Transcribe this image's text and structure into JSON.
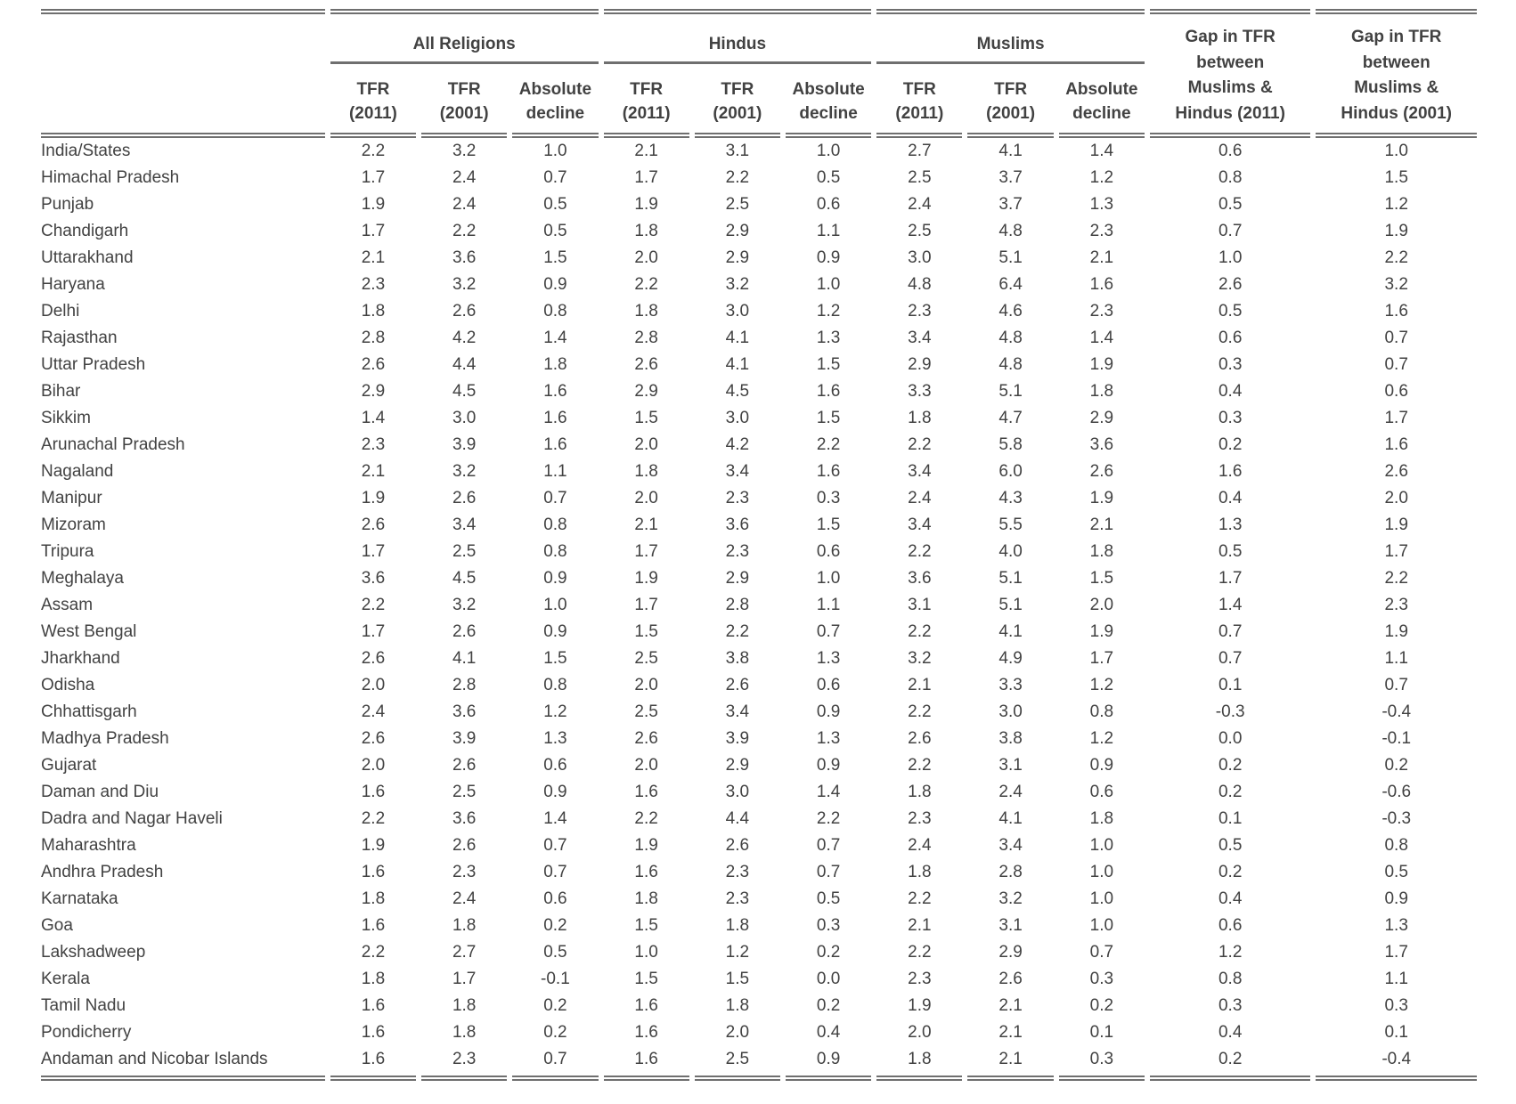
{
  "table": {
    "group_headers": [
      "All Religions",
      "Hindus",
      "Muslims"
    ],
    "sub_headers": [
      "TFR\n(2011)",
      "TFR\n(2001)",
      "Absolute\ndecline",
      "TFR\n(2011)",
      "TFR\n(2001)",
      "Absolute\ndecline",
      "TFR\n(2011)",
      "TFR\n(2001)",
      "Absolute\ndecline"
    ],
    "gap_headers": [
      "Gap in TFR\nbetween\nMuslims &\nHindus (2011)",
      "Gap in TFR\nbetween\nMuslims &\nHindus (2001)"
    ],
    "rows": [
      {
        "name": "India/States",
        "values": [
          "2.2",
          "3.2",
          "1.0",
          "2.1",
          "3.1",
          "1.0",
          "2.7",
          "4.1",
          "1.4",
          "0.6",
          "1.0"
        ]
      },
      {
        "name": "Himachal Pradesh",
        "values": [
          "1.7",
          "2.4",
          "0.7",
          "1.7",
          "2.2",
          "0.5",
          "2.5",
          "3.7",
          "1.2",
          "0.8",
          "1.5"
        ]
      },
      {
        "name": "Punjab",
        "values": [
          "1.9",
          "2.4",
          "0.5",
          "1.9",
          "2.5",
          "0.6",
          "2.4",
          "3.7",
          "1.3",
          "0.5",
          "1.2"
        ]
      },
      {
        "name": "Chandigarh",
        "values": [
          "1.7",
          "2.2",
          "0.5",
          "1.8",
          "2.9",
          "1.1",
          "2.5",
          "4.8",
          "2.3",
          "0.7",
          "1.9"
        ]
      },
      {
        "name": "Uttarakhand",
        "values": [
          "2.1",
          "3.6",
          "1.5",
          "2.0",
          "2.9",
          "0.9",
          "3.0",
          "5.1",
          "2.1",
          "1.0",
          "2.2"
        ]
      },
      {
        "name": "Haryana",
        "values": [
          "2.3",
          "3.2",
          "0.9",
          "2.2",
          "3.2",
          "1.0",
          "4.8",
          "6.4",
          "1.6",
          "2.6",
          "3.2"
        ]
      },
      {
        "name": "Delhi",
        "values": [
          "1.8",
          "2.6",
          "0.8",
          "1.8",
          "3.0",
          "1.2",
          "2.3",
          "4.6",
          "2.3",
          "0.5",
          "1.6"
        ]
      },
      {
        "name": "Rajasthan",
        "values": [
          "2.8",
          "4.2",
          "1.4",
          "2.8",
          "4.1",
          "1.3",
          "3.4",
          "4.8",
          "1.4",
          "0.6",
          "0.7"
        ]
      },
      {
        "name": "Uttar Pradesh",
        "values": [
          "2.6",
          "4.4",
          "1.8",
          "2.6",
          "4.1",
          "1.5",
          "2.9",
          "4.8",
          "1.9",
          "0.3",
          "0.7"
        ]
      },
      {
        "name": "Bihar",
        "values": [
          "2.9",
          "4.5",
          "1.6",
          "2.9",
          "4.5",
          "1.6",
          "3.3",
          "5.1",
          "1.8",
          "0.4",
          "0.6"
        ]
      },
      {
        "name": "Sikkim",
        "values": [
          "1.4",
          "3.0",
          "1.6",
          "1.5",
          "3.0",
          "1.5",
          "1.8",
          "4.7",
          "2.9",
          "0.3",
          "1.7"
        ]
      },
      {
        "name": "Arunachal Pradesh",
        "values": [
          "2.3",
          "3.9",
          "1.6",
          "2.0",
          "4.2",
          "2.2",
          "2.2",
          "5.8",
          "3.6",
          "0.2",
          "1.6"
        ]
      },
      {
        "name": "Nagaland",
        "values": [
          "2.1",
          "3.2",
          "1.1",
          "1.8",
          "3.4",
          "1.6",
          "3.4",
          "6.0",
          "2.6",
          "1.6",
          "2.6"
        ]
      },
      {
        "name": "Manipur",
        "values": [
          "1.9",
          "2.6",
          "0.7",
          "2.0",
          "2.3",
          "0.3",
          "2.4",
          "4.3",
          "1.9",
          "0.4",
          "2.0"
        ]
      },
      {
        "name": "Mizoram",
        "values": [
          "2.6",
          "3.4",
          "0.8",
          "2.1",
          "3.6",
          "1.5",
          "3.4",
          "5.5",
          "2.1",
          "1.3",
          "1.9"
        ]
      },
      {
        "name": "Tripura",
        "values": [
          "1.7",
          "2.5",
          "0.8",
          "1.7",
          "2.3",
          "0.6",
          "2.2",
          "4.0",
          "1.8",
          "0.5",
          "1.7"
        ]
      },
      {
        "name": "Meghalaya",
        "values": [
          "3.6",
          "4.5",
          "0.9",
          "1.9",
          "2.9",
          "1.0",
          "3.6",
          "5.1",
          "1.5",
          "1.7",
          "2.2"
        ]
      },
      {
        "name": "Assam",
        "values": [
          "2.2",
          "3.2",
          "1.0",
          "1.7",
          "2.8",
          "1.1",
          "3.1",
          "5.1",
          "2.0",
          "1.4",
          "2.3"
        ]
      },
      {
        "name": "West Bengal",
        "values": [
          "1.7",
          "2.6",
          "0.9",
          "1.5",
          "2.2",
          "0.7",
          "2.2",
          "4.1",
          "1.9",
          "0.7",
          "1.9"
        ]
      },
      {
        "name": "Jharkhand",
        "values": [
          "2.6",
          "4.1",
          "1.5",
          "2.5",
          "3.8",
          "1.3",
          "3.2",
          "4.9",
          "1.7",
          "0.7",
          "1.1"
        ]
      },
      {
        "name": "Odisha",
        "values": [
          "2.0",
          "2.8",
          "0.8",
          "2.0",
          "2.6",
          "0.6",
          "2.1",
          "3.3",
          "1.2",
          "0.1",
          "0.7"
        ]
      },
      {
        "name": "Chhattisgarh",
        "values": [
          "2.4",
          "3.6",
          "1.2",
          "2.5",
          "3.4",
          "0.9",
          "2.2",
          "3.0",
          "0.8",
          "-0.3",
          "-0.4"
        ]
      },
      {
        "name": "Madhya Pradesh",
        "values": [
          "2.6",
          "3.9",
          "1.3",
          "2.6",
          "3.9",
          "1.3",
          "2.6",
          "3.8",
          "1.2",
          "0.0",
          "-0.1"
        ]
      },
      {
        "name": "Gujarat",
        "values": [
          "2.0",
          "2.6",
          "0.6",
          "2.0",
          "2.9",
          "0.9",
          "2.2",
          "3.1",
          "0.9",
          "0.2",
          "0.2"
        ]
      },
      {
        "name": "Daman and Diu",
        "values": [
          "1.6",
          "2.5",
          "0.9",
          "1.6",
          "3.0",
          "1.4",
          "1.8",
          "2.4",
          "0.6",
          "0.2",
          "-0.6"
        ]
      },
      {
        "name": "Dadra and Nagar Haveli",
        "values": [
          "2.2",
          "3.6",
          "1.4",
          "2.2",
          "4.4",
          "2.2",
          "2.3",
          "4.1",
          "1.8",
          "0.1",
          "-0.3"
        ]
      },
      {
        "name": "Maharashtra",
        "values": [
          "1.9",
          "2.6",
          "0.7",
          "1.9",
          "2.6",
          "0.7",
          "2.4",
          "3.4",
          "1.0",
          "0.5",
          "0.8"
        ]
      },
      {
        "name": "Andhra Pradesh",
        "values": [
          "1.6",
          "2.3",
          "0.7",
          "1.6",
          "2.3",
          "0.7",
          "1.8",
          "2.8",
          "1.0",
          "0.2",
          "0.5"
        ]
      },
      {
        "name": "Karnataka",
        "values": [
          "1.8",
          "2.4",
          "0.6",
          "1.8",
          "2.3",
          "0.5",
          "2.2",
          "3.2",
          "1.0",
          "0.4",
          "0.9"
        ]
      },
      {
        "name": "Goa",
        "values": [
          "1.6",
          "1.8",
          "0.2",
          "1.5",
          "1.8",
          "0.3",
          "2.1",
          "3.1",
          "1.0",
          "0.6",
          "1.3"
        ]
      },
      {
        "name": "Lakshadweep",
        "values": [
          "2.2",
          "2.7",
          "0.5",
          "1.0",
          "1.2",
          "0.2",
          "2.2",
          "2.9",
          "0.7",
          "1.2",
          "1.7"
        ]
      },
      {
        "name": "Kerala",
        "values": [
          "1.8",
          "1.7",
          "-0.1",
          "1.5",
          "1.5",
          "0.0",
          "2.3",
          "2.6",
          "0.3",
          "0.8",
          "1.1"
        ]
      },
      {
        "name": "Tamil Nadu",
        "values": [
          "1.6",
          "1.8",
          "0.2",
          "1.6",
          "1.8",
          "0.2",
          "1.9",
          "2.1",
          "0.2",
          "0.3",
          "0.3"
        ]
      },
      {
        "name": "Pondicherry",
        "values": [
          "1.6",
          "1.8",
          "0.2",
          "1.6",
          "2.0",
          "0.4",
          "2.0",
          "2.1",
          "0.1",
          "0.4",
          "0.1"
        ]
      },
      {
        "name": "Andaman and Nicobar Islands",
        "values": [
          "1.6",
          "2.3",
          "0.7",
          "1.6",
          "2.5",
          "0.9",
          "1.8",
          "2.1",
          "0.3",
          "0.2",
          "-0.4"
        ]
      }
    ]
  }
}
